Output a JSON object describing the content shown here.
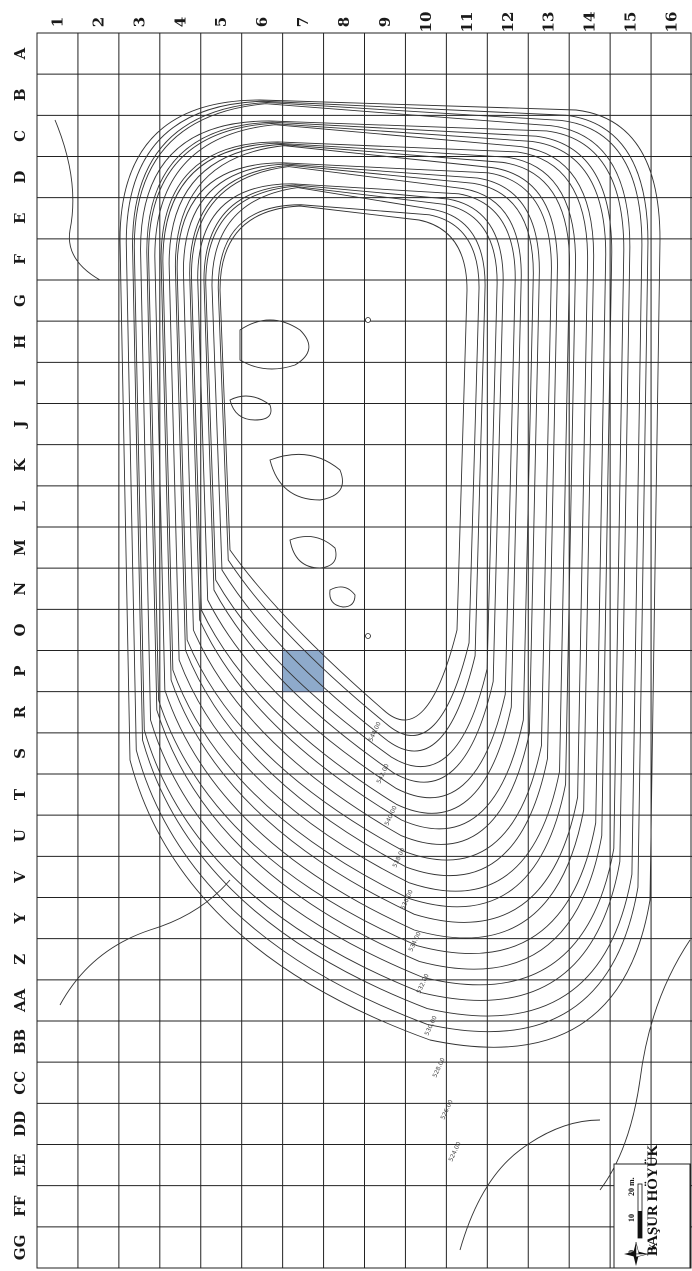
{
  "map": {
    "columns": [
      "1",
      "2",
      "3",
      "4",
      "5",
      "6",
      "7",
      "8",
      "9",
      "10",
      "11",
      "12",
      "13",
      "14",
      "15",
      "16"
    ],
    "rows": [
      "A",
      "B",
      "C",
      "D",
      "E",
      "F",
      "G",
      "H",
      "I",
      "J",
      "K",
      "L",
      "M",
      "N",
      "O",
      "P",
      "R",
      "S",
      "T",
      "U",
      "V",
      "Y",
      "Z",
      "AA",
      "BB",
      "CC",
      "DD",
      "EE",
      "FF",
      "GG"
    ],
    "highlight": {
      "column": "7",
      "row": "P",
      "color": "#8eaacb"
    },
    "elevation_labels": [
      "544.00",
      "542.00",
      "540.00",
      "538.00",
      "536.00",
      "534.00",
      "532.00",
      "530.00",
      "528.00",
      "526.00",
      "524.00"
    ],
    "legend": {
      "title": "BAŞUR HÖYÜK",
      "scale_ticks": [
        "0",
        "10",
        "20 m."
      ],
      "north_letter": "K"
    }
  }
}
